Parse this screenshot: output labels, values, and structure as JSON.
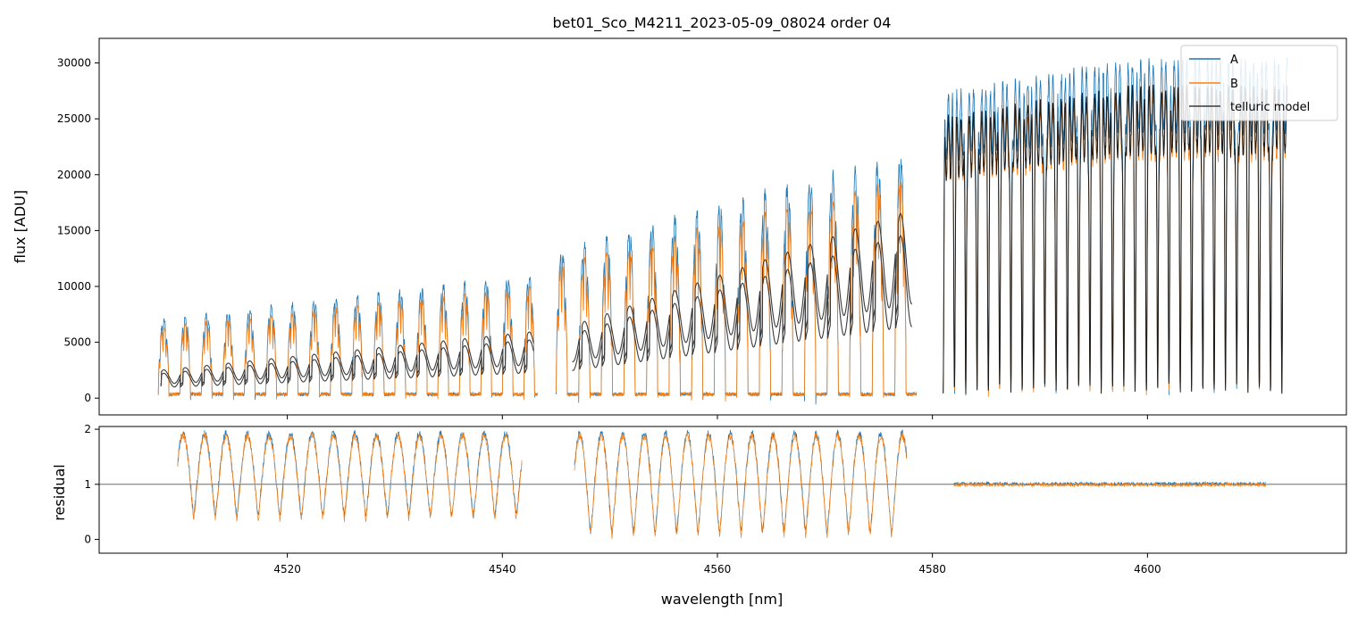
{
  "chart_data": [
    {
      "type": "line",
      "panel": "top",
      "title": "bet01_Sco_M4211_2023-05-09_08024  order 04",
      "xlabel": "",
      "ylabel": "flux [ADU]",
      "xlim": [
        4502.5,
        4618.5
      ],
      "ylim": [
        -1500,
        32200
      ],
      "yticks": [
        0,
        5000,
        10000,
        15000,
        20000,
        25000,
        30000
      ],
      "ytick_labels": [
        "0",
        "5000",
        "10000",
        "15000",
        "20000",
        "25000",
        "30000"
      ],
      "xticks": [
        4520,
        4540,
        4560,
        4580,
        4600
      ],
      "legend": {
        "position": "top-right",
        "entries": [
          "A",
          "B",
          "telluric model"
        ]
      },
      "segments": [
        {
          "x_start": 4508.0,
          "x_end": 4543.3,
          "kind": "fringe",
          "line_spacing": 2.0,
          "amp_A_start": 7000,
          "amp_A_end": 11000,
          "ratio_B": 0.9,
          "model_A_start": 2500,
          "model_A_end": 6000,
          "model_offset_start": 4508.2
        },
        {
          "x_start": 4545.0,
          "x_end": 4578.5,
          "kind": "fringe",
          "line_spacing": 2.1,
          "amp_A_start": 13000,
          "amp_A_end": 22000,
          "ratio_B": 0.9,
          "model_A_start": 6500,
          "model_A_end": 17000,
          "model_offset_start": 4546.5
        },
        {
          "x_start": 4581.0,
          "x_end": 4613.0,
          "kind": "absorption",
          "line_spacing": 1.05,
          "amp_A_start": 27000,
          "amp_A_end": 30000,
          "ratio_B": 0.9
        }
      ],
      "series": [
        {
          "name": "A",
          "color": "#1f77b4"
        },
        {
          "name": "B",
          "color": "#ff7f0e"
        },
        {
          "name": "telluric model",
          "color": "#3a3a3a"
        }
      ]
    },
    {
      "type": "line",
      "panel": "bottom",
      "xlabel": "wavelength [nm]",
      "ylabel": "residual",
      "xlim": [
        4502.5,
        4618.5
      ],
      "ylim": [
        -0.25,
        2.05
      ],
      "yticks": [
        0,
        1,
        2
      ],
      "ytick_labels": [
        "0",
        "1",
        "2"
      ],
      "xticks": [
        4520,
        4540,
        4560,
        4580,
        4600
      ],
      "xtick_labels": [
        "4520",
        "4540",
        "4560",
        "4580",
        "4600"
      ],
      "reference_line": 1,
      "segments": [
        {
          "x_start": 4509.8,
          "x_end": 4541.8,
          "kind": "oscillating",
          "low": 0.4,
          "high": 1.9
        },
        {
          "x_start": 4546.7,
          "x_end": 4577.6,
          "kind": "oscillating",
          "low": 0.1,
          "high": 1.9
        },
        {
          "x_start": 4582.0,
          "x_end": 4611.0,
          "kind": "flat",
          "level": 1.0,
          "noise": 0.03
        }
      ],
      "series": [
        {
          "name": "A",
          "color": "#1f77b4"
        },
        {
          "name": "B",
          "color": "#ff7f0e"
        }
      ]
    }
  ]
}
